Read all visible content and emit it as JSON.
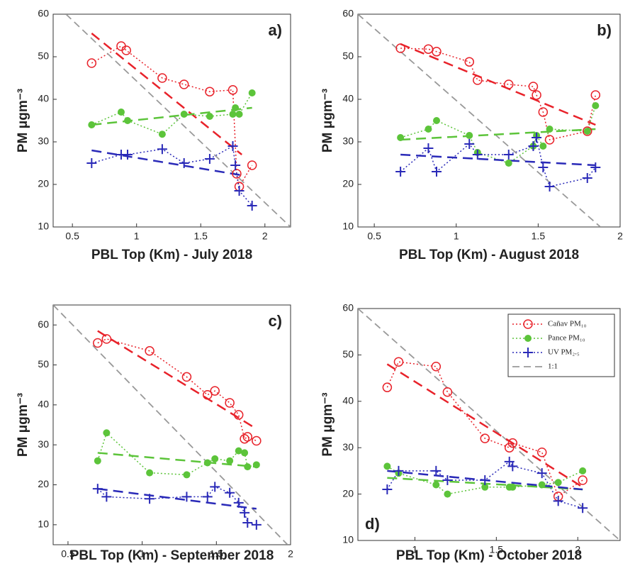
{
  "chart_data": [
    {
      "type": "line",
      "label": "a)",
      "xlabel": "PBL Top (Km) - July 2018",
      "ylabel": "PM μgm⁻³",
      "xlim": [
        0.35,
        2.2
      ],
      "xticks": [
        0.5,
        1,
        1.5,
        2
      ],
      "ylim": [
        10,
        60
      ],
      "yticks": [
        10,
        20,
        30,
        40,
        50,
        60
      ],
      "legend": null,
      "series": [
        {
          "name": "Cañav PM₁₀",
          "color": "#e8222a",
          "marker": "o",
          "x": [
            0.65,
            0.88,
            0.92,
            1.2,
            1.37,
            1.57,
            1.75,
            1.78,
            1.8,
            1.9
          ],
          "values": [
            48.5,
            52.5,
            51.5,
            45,
            43.5,
            41.8,
            42.2,
            22.5,
            19.5,
            24.5
          ]
        },
        {
          "name": "Pance PM₁₀",
          "color": "#5cc43a",
          "marker": ".",
          "x": [
            0.65,
            0.88,
            0.93,
            1.2,
            1.37,
            1.57,
            1.75,
            1.77,
            1.8,
            1.9
          ],
          "values": [
            34,
            37,
            35,
            31.8,
            36.5,
            36,
            36.5,
            38,
            36.5,
            41.5
          ]
        },
        {
          "name": "UV PM₂.₅",
          "color": "#2a2ab8",
          "marker": "+",
          "x": [
            0.65,
            0.88,
            0.93,
            1.2,
            1.37,
            1.57,
            1.75,
            1.77,
            1.8,
            1.9
          ],
          "values": [
            25,
            27,
            27,
            28.3,
            25,
            26,
            29,
            24.5,
            18.5,
            15
          ]
        },
        {
          "name": "1:1",
          "color": "#999999",
          "marker": null,
          "x": [
            0.45,
            2.2
          ],
          "values": [
            60,
            10
          ]
        }
      ],
      "fits": [
        {
          "color": "#e8222a",
          "x": [
            0.65,
            1.82
          ],
          "values": [
            55.5,
            27
          ]
        },
        {
          "color": "#5cc43a",
          "x": [
            0.65,
            1.9
          ],
          "values": [
            34,
            38
          ]
        },
        {
          "color": "#2a2ab8",
          "x": [
            0.65,
            1.85
          ],
          "values": [
            28,
            22
          ]
        }
      ]
    },
    {
      "type": "line",
      "label": "b)",
      "xlabel": "PBL Top (Km) - August 2018",
      "ylabel": "PM μgm⁻³",
      "xlim": [
        0.4,
        2
      ],
      "xticks": [
        0.5,
        1,
        1.5,
        2
      ],
      "ylim": [
        10,
        60
      ],
      "yticks": [
        10,
        20,
        30,
        40,
        50,
        60
      ],
      "legend": null,
      "series": [
        {
          "name": "Cañav PM₁₀",
          "color": "#e8222a",
          "marker": "o",
          "x": [
            0.66,
            0.83,
            0.88,
            1.08,
            1.13,
            1.32,
            1.47,
            1.49,
            1.53,
            1.57,
            1.8,
            1.85
          ],
          "values": [
            52,
            51.8,
            51.2,
            48.8,
            44.5,
            43.5,
            43,
            41,
            37,
            30.5,
            32.5,
            41
          ]
        },
        {
          "name": "Pance PM₁₀",
          "color": "#5cc43a",
          "marker": ".",
          "x": [
            0.66,
            0.83,
            0.88,
            1.08,
            1.13,
            1.32,
            1.47,
            1.49,
            1.53,
            1.57,
            1.8,
            1.85
          ],
          "values": [
            31,
            33,
            35,
            31.5,
            27.5,
            25,
            29,
            31.5,
            29,
            33,
            32.5,
            38.5
          ]
        },
        {
          "name": "UV PM₂.₅",
          "color": "#2a2ab8",
          "marker": "+",
          "x": [
            0.66,
            0.83,
            0.88,
            1.08,
            1.13,
            1.32,
            1.47,
            1.49,
            1.53,
            1.57,
            1.8,
            1.85
          ],
          "values": [
            23,
            28.5,
            23,
            29.5,
            27,
            27,
            29,
            31,
            24,
            19.5,
            21.5,
            24
          ]
        },
        {
          "name": "1:1",
          "color": "#999999",
          "marker": null,
          "x": [
            0.4,
            1.88
          ],
          "values": [
            60,
            10
          ]
        }
      ],
      "fits": [
        {
          "color": "#e8222a",
          "x": [
            0.66,
            1.85
          ],
          "values": [
            53,
            34
          ]
        },
        {
          "color": "#5cc43a",
          "x": [
            0.66,
            1.85
          ],
          "values": [
            30.5,
            33
          ]
        },
        {
          "color": "#2a2ab8",
          "x": [
            0.66,
            1.85
          ],
          "values": [
            27,
            24.5
          ]
        }
      ]
    },
    {
      "type": "line",
      "label": "c)",
      "xlabel": "PBL Top (Km) - September 2018",
      "ylabel": "PM μgm⁻³",
      "xlim": [
        0.4,
        2
      ],
      "xticks": [
        0.5,
        1,
        1.5,
        2
      ],
      "ylim": [
        5,
        65
      ],
      "yticks": [
        10,
        20,
        30,
        40,
        50,
        60
      ],
      "legend": null,
      "series": [
        {
          "name": "Cañav PM₁₀",
          "color": "#e8222a",
          "marker": "o",
          "x": [
            0.7,
            0.76,
            1.05,
            1.3,
            1.44,
            1.49,
            1.59,
            1.65,
            1.69,
            1.71,
            1.77
          ],
          "values": [
            55.5,
            56.5,
            53.5,
            47,
            42.5,
            43.5,
            40.5,
            37.5,
            31.5,
            32,
            31
          ]
        },
        {
          "name": "Pance PM₁₀",
          "color": "#5cc43a",
          "marker": ".",
          "x": [
            0.7,
            0.76,
            1.05,
            1.3,
            1.44,
            1.49,
            1.59,
            1.65,
            1.69,
            1.71,
            1.77
          ],
          "values": [
            26,
            33,
            23,
            22.5,
            25.5,
            26.5,
            26,
            28.5,
            28,
            24.5,
            25
          ]
        },
        {
          "name": "UV PM₂.₅",
          "color": "#2a2ab8",
          "marker": "+",
          "x": [
            0.7,
            0.76,
            1.05,
            1.3,
            1.44,
            1.49,
            1.59,
            1.65,
            1.69,
            1.71,
            1.77
          ],
          "values": [
            19,
            17,
            16.5,
            17,
            17,
            19.5,
            18,
            15.5,
            13,
            10.5,
            10
          ]
        },
        {
          "name": "1:1",
          "color": "#999999",
          "marker": null,
          "x": [
            0.4,
            1.98
          ],
          "values": [
            65,
            5
          ]
        }
      ],
      "fits": [
        {
          "color": "#e8222a",
          "x": [
            0.7,
            1.77
          ],
          "values": [
            58.5,
            34
          ]
        },
        {
          "color": "#5cc43a",
          "x": [
            0.7,
            1.77
          ],
          "values": [
            28,
            24.5
          ]
        },
        {
          "color": "#2a2ab8",
          "x": [
            0.7,
            1.77
          ],
          "values": [
            19,
            14
          ]
        }
      ]
    },
    {
      "type": "line",
      "label": "d)",
      "xlabel": "PBL Top (Km) - October 2018",
      "ylabel": "PM μgm⁻³",
      "xlim": [
        0.65,
        2.26
      ],
      "xticks": [
        1,
        1.5,
        2
      ],
      "ylim": [
        10,
        60
      ],
      "yticks": [
        10,
        20,
        30,
        40,
        50,
        60
      ],
      "legend": "upper right",
      "series": [
        {
          "name": "Cañav PM₁₀",
          "color": "#e8222a",
          "marker": "o",
          "x": [
            0.83,
            0.9,
            1.13,
            1.2,
            1.43,
            1.58,
            1.6,
            1.78,
            1.88,
            2.03
          ],
          "values": [
            43,
            48.5,
            47.5,
            42,
            32,
            30,
            31,
            29,
            19.5,
            23
          ]
        },
        {
          "name": "Pance PM₁₀",
          "color": "#5cc43a",
          "marker": ".",
          "x": [
            0.83,
            0.9,
            1.13,
            1.2,
            1.43,
            1.58,
            1.6,
            1.78,
            1.88,
            2.03
          ],
          "values": [
            26,
            24.5,
            22,
            20,
            21.5,
            21.5,
            21.5,
            22,
            22.5,
            25
          ]
        },
        {
          "name": "UV PM₂.₅",
          "color": "#2a2ab8",
          "marker": "+",
          "x": [
            0.83,
            0.9,
            1.13,
            1.2,
            1.43,
            1.58,
            1.6,
            1.78,
            1.88,
            2.03
          ],
          "values": [
            21,
            25,
            25,
            23,
            23,
            27,
            26,
            24.5,
            18.5,
            17
          ]
        },
        {
          "name": "1:1",
          "color": "#999999",
          "marker": null,
          "x": [
            0.65,
            2.26
          ],
          "values": [
            60,
            10
          ]
        }
      ],
      "fits": [
        {
          "color": "#e8222a",
          "x": [
            0.83,
            2.03
          ],
          "values": [
            48,
            21.5
          ]
        },
        {
          "color": "#5cc43a",
          "x": [
            0.83,
            2.03
          ],
          "values": [
            23.5,
            21
          ]
        },
        {
          "color": "#2a2ab8",
          "x": [
            0.83,
            2.03
          ],
          "values": [
            25,
            21
          ]
        }
      ]
    }
  ]
}
